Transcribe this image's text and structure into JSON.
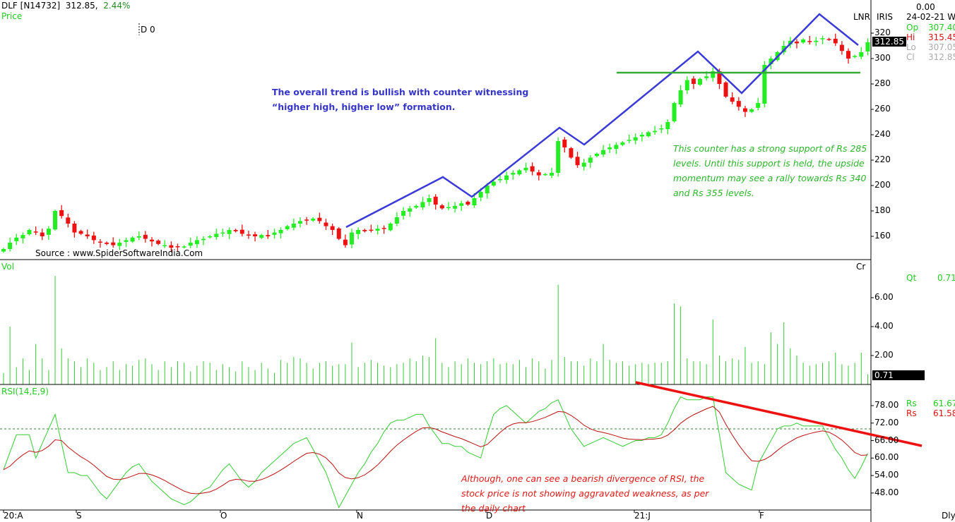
{
  "header": {
    "symbol": "DLF [N14732]",
    "price": "312.85,",
    "change": "2.44%",
    "panel_label": "Price",
    "cursor_label": "D 0"
  },
  "info": {
    "top_value": "0.00",
    "date": "24-02-21 We",
    "lnr": "LNR",
    "iris": "IRIS",
    "open_label": "Op",
    "open": "307.40",
    "high_label": "Hi",
    "high": "315.45",
    "low_label": "Lo",
    "low": "307.05",
    "close_label": "Cl",
    "close": "312.85",
    "last_price_box": "312.85"
  },
  "volume_panel": {
    "label": "Vol",
    "unit": "Cr",
    "qt_label": "Qt",
    "qt": "0.71",
    "last_box": "0.71",
    "ticks": [
      "6.00",
      "4.00",
      "2.00"
    ]
  },
  "rsi_panel": {
    "label": "RSI(14,E,9)",
    "rs1_label": "Rs",
    "rs1": "61.67",
    "rs2_label": "Rs",
    "rs2": "61.58",
    "ticks": [
      "78.00",
      "72.00",
      "66.00",
      "60.00",
      "54.00",
      "48.00"
    ]
  },
  "price_ticks": [
    "320",
    "300",
    "280",
    "260",
    "240",
    "220",
    "200",
    "180",
    "160"
  ],
  "x_axis": {
    "labels": [
      "20:A",
      "S",
      "O",
      "N",
      "D",
      "21:J",
      "F"
    ],
    "period": "Dly"
  },
  "source": "Source : www.SpiderSoftwareIndia.Com",
  "annotations": {
    "trend": "The overall trend is bullish with counter witnessing “higher high, higher low” formation.",
    "support": "This counter has a strong support of Rs 285 levels. Until this support is held, the upside momentum may see a rally towards Rs 340 and Rs 355 levels.",
    "rsi": "Although, one can see a bearish divergence of RSI, the stock price is not showing aggravated weakness, as per the daily chart"
  },
  "colors": {
    "up": "#22ee22",
    "down": "#ee1111",
    "trendline": "#3a3ad8",
    "support": "#33aa33",
    "rsi": "#33cc33",
    "signal": "#bb1111",
    "divergence": "#ee1111"
  },
  "chart_data": {
    "type": "candlestick",
    "title": "DLF [N14732] daily",
    "price_ylim": [
      150,
      330
    ],
    "support_level": 285,
    "close": [
      150,
      155,
      159,
      161,
      165,
      163,
      160,
      166,
      180,
      176,
      170,
      163,
      162,
      160,
      157,
      155,
      154,
      153,
      155,
      157,
      159,
      160,
      158,
      156,
      154,
      153,
      151,
      152,
      152,
      155,
      157,
      158,
      160,
      162,
      163,
      165,
      164,
      162,
      161,
      160,
      161,
      160,
      163,
      165,
      168,
      170,
      172,
      173,
      174,
      172,
      168,
      165,
      158,
      153,
      163,
      165,
      164,
      165,
      166,
      166,
      170,
      175,
      180,
      182,
      184,
      187,
      190,
      185,
      182,
      183,
      184,
      186,
      185,
      190,
      195,
      200,
      203,
      205,
      208,
      210,
      212,
      214,
      211,
      208,
      209,
      210,
      235,
      230,
      222,
      216,
      218,
      222,
      225,
      228,
      230,
      232,
      234,
      236,
      238,
      240,
      242,
      243,
      245,
      250,
      265,
      275,
      283,
      280,
      284,
      286,
      290,
      280,
      270,
      266,
      262,
      258,
      260,
      265,
      295,
      300,
      305,
      310,
      314,
      312,
      315,
      313,
      314,
      316,
      315,
      312,
      306,
      300,
      302,
      305,
      312.85
    ],
    "volume_cr": [
      0.8,
      4.0,
      1.2,
      1.8,
      1.0,
      2.8,
      1.8,
      1.0,
      7.5,
      2.5,
      1.8,
      1.6,
      1.2,
      1.8,
      1.5,
      1.0,
      1.2,
      1.6,
      1.0,
      1.4,
      1.3,
      1.7,
      1.8,
      1.4,
      1.0,
      1.6,
      1.2,
      1.6,
      1.5,
      0.9,
      1.3,
      1.6,
      1.5,
      1.0,
      1.4,
      1.2,
      0.9,
      1.6,
      1.2,
      1.0,
      1.5,
      1.1,
      0.8,
      1.7,
      1.5,
      1.9,
      1.8,
      1.5,
      1.1,
      1.5,
      1.6,
      1.3,
      1.4,
      1.4,
      2.9,
      1.2,
      1.5,
      1.7,
      1.5,
      1.3,
      1.2,
      1.4,
      1.5,
      1.8,
      1.6,
      2.0,
      1.9,
      3.2,
      1.5,
      1.2,
      1.6,
      1.4,
      1.8,
      1.5,
      1.4,
      1.6,
      1.8,
      1.4,
      1.5,
      1.4,
      1.7,
      1.2,
      1.8,
      1.6,
      1.1,
      1.7,
      6.9,
      1.9,
      1.6,
      1.6,
      1.3,
      1.8,
      1.6,
      2.8,
      1.7,
      1.5,
      1.6,
      1.3,
      1.4,
      1.5,
      1.4,
      1.5,
      1.5,
      1.6,
      5.6,
      5.4,
      1.8,
      1.6,
      1.6,
      1.4,
      4.5,
      2.0,
      1.6,
      1.8,
      1.7,
      2.6,
      1.5,
      1.6,
      1.4,
      3.6,
      2.8,
      4.3,
      2.5,
      2.0,
      1.5,
      1.3,
      1.4,
      1.5,
      1.6,
      2.2,
      1.4,
      1.3,
      1.5,
      2.2,
      0.71
    ],
    "rsi": [
      56,
      62,
      68,
      68,
      68,
      60,
      65,
      70,
      75,
      65,
      55,
      55,
      54,
      54,
      51,
      48,
      46,
      49,
      52,
      55,
      57,
      58,
      55,
      52,
      50,
      48,
      46,
      45,
      44,
      45,
      47,
      49,
      50,
      53,
      56,
      58,
      55,
      52,
      50,
      52,
      55,
      57,
      59,
      61,
      63,
      65,
      66,
      67,
      63,
      59,
      55,
      49,
      43,
      47,
      51,
      55,
      58,
      62,
      65,
      69,
      72,
      73,
      73,
      74,
      75,
      75,
      71,
      68,
      65,
      65,
      64,
      64,
      62,
      61,
      60,
      68,
      75,
      77,
      78,
      76,
      74,
      72,
      74,
      76,
      77,
      79,
      80,
      75,
      70,
      67,
      64,
      65,
      66,
      67,
      66,
      65,
      64,
      65,
      66,
      66,
      67,
      67,
      68,
      72,
      77,
      81,
      80,
      80,
      80,
      81,
      81,
      68,
      55,
      53,
      51,
      50,
      49,
      58,
      62,
      66,
      70,
      71,
      71,
      72,
      71,
      71,
      71,
      71,
      67,
      63,
      60,
      56,
      53,
      57,
      61.67
    ],
    "rsi_ylim": [
      44,
      84
    ],
    "rsi_reference_level": 70,
    "volume_ylim": [
      0,
      8.5
    ]
  }
}
